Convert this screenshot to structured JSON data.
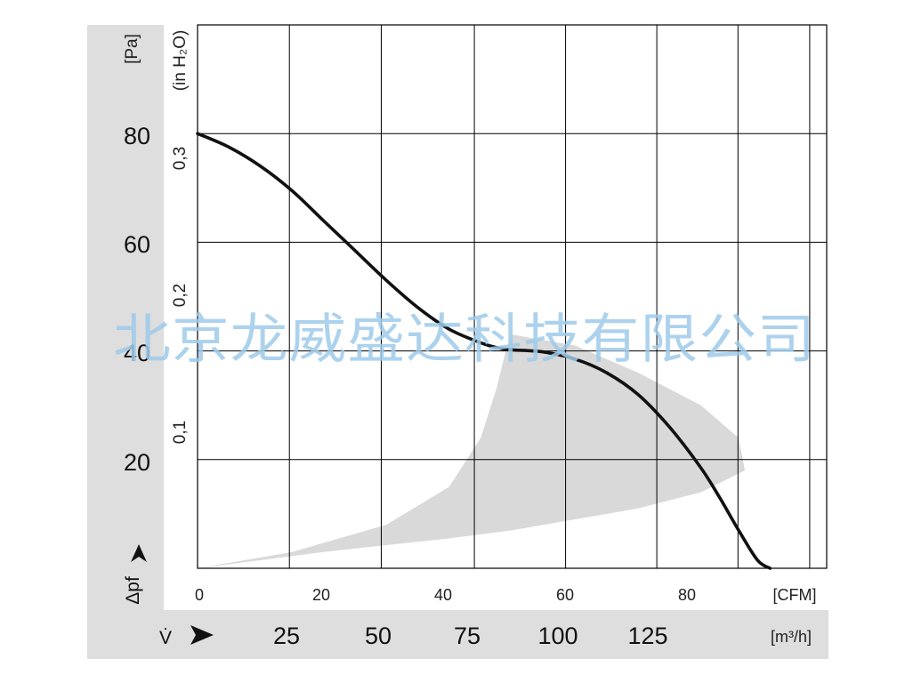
{
  "chart_data": {
    "type": "line",
    "watermark": "北京龙威盛达科技有限公司",
    "x": [
      0,
      5,
      10,
      15,
      20,
      25,
      30,
      35,
      40,
      45,
      48,
      50,
      55,
      60,
      65,
      70,
      75,
      80,
      83,
      86,
      89,
      91
    ],
    "series": [
      {
        "values": [
          80,
          77.5,
          74,
          69.5,
          64,
          58.5,
          53,
          48,
          44,
          41.5,
          40.5,
          40.2,
          39.8,
          38.5,
          36,
          32,
          26,
          18.5,
          13,
          7,
          1.5,
          0
        ]
      }
    ],
    "operating_range": {
      "upper": [
        [
          0,
          0
        ],
        [
          15,
          3
        ],
        [
          30,
          8
        ],
        [
          40,
          15
        ],
        [
          45,
          24
        ],
        [
          47.5,
          33
        ],
        [
          49,
          40
        ],
        [
          50,
          43
        ],
        [
          60,
          41
        ],
        [
          70,
          36
        ],
        [
          80,
          30
        ],
        [
          86,
          24
        ],
        [
          87,
          18
        ]
      ],
      "lower": [
        [
          87,
          18
        ],
        [
          80,
          14
        ],
        [
          70,
          11
        ],
        [
          60,
          9
        ],
        [
          50,
          7
        ],
        [
          40,
          5.5
        ],
        [
          20,
          3
        ],
        [
          0,
          0
        ]
      ]
    },
    "xlim": [
      0,
      100
    ],
    "ylim": [
      0,
      100
    ],
    "x_ticks": [
      "0",
      "20",
      "40",
      "60",
      "80"
    ],
    "x_unit": "[CFM]",
    "y_ticks": [
      "20",
      "40",
      "60",
      "80"
    ],
    "y_ticks_values": [
      20,
      40,
      60,
      80
    ],
    "y_unit": "[Pa]",
    "y_secondary_unit": "(in H₂O)",
    "y_secondary_ticks": [
      "0,1",
      "0,2",
      "0,3"
    ],
    "y_secondary_tick_values": [
      0.1,
      0.2,
      0.3
    ],
    "y_symbol": "Δpf",
    "x_secondary_symbol": "V̇",
    "x_secondary_ticks": [
      "25",
      "50",
      "75",
      "100",
      "125"
    ],
    "x_secondary_tick_values": [
      25,
      50,
      75,
      100,
      125
    ],
    "x_secondary_unit": "[m³/h]",
    "grid": true,
    "colors": {
      "curve": "#111111",
      "range": "#d9d9d9",
      "grid": "#000000",
      "band": "#dedede",
      "watermark": "#9ecbea"
    }
  }
}
